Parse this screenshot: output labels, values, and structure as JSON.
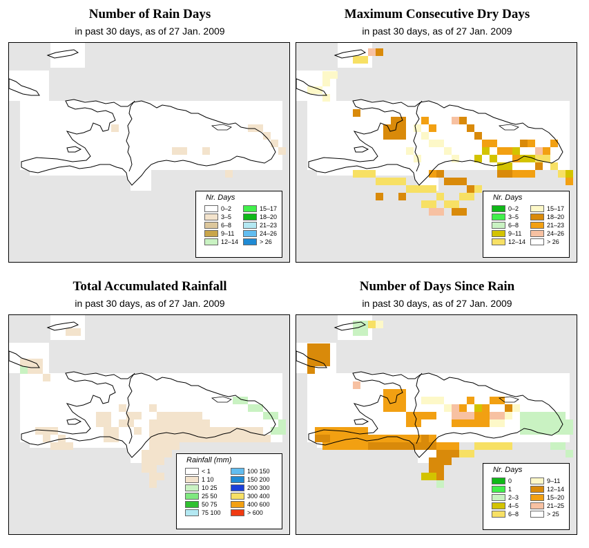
{
  "panels": [
    {
      "id": "rain-days",
      "title": "Number of Rain Days",
      "subtitle": "in past 30 days, as of  27 Jan. 2009",
      "legend": {
        "title": "Nr. Days",
        "items": [
          {
            "label": "0–2",
            "color": "#ffffff"
          },
          {
            "label": "3–5",
            "color": "#f3e3cc"
          },
          {
            "label": "6–8",
            "color": "#dcc79c"
          },
          {
            "label": "9–11",
            "color": "#c9a54a"
          },
          {
            "label": "12–14",
            "color": "#c9f2c2"
          },
          {
            "label": "15–17",
            "color": "#41f04b"
          },
          {
            "label": "18–20",
            "color": "#0fb818"
          },
          {
            "label": "21–23",
            "color": "#b3e8f2"
          },
          {
            "label": "24–26",
            "color": "#62bdf0"
          },
          {
            "label": "> 26",
            "color": "#1f8ad4"
          }
        ]
      }
    },
    {
      "id": "max-dry-days",
      "title": "Maximum Consecutive Dry Days",
      "subtitle": "in past 30 days, as of  27 Jan. 2009",
      "legend": {
        "title": "Nr. Days",
        "items": [
          {
            "label": "0–2",
            "color": "#0fb818"
          },
          {
            "label": "3–5",
            "color": "#41f04b"
          },
          {
            "label": "6–8",
            "color": "#c9f2c2"
          },
          {
            "label": "9–11",
            "color": "#d3c300"
          },
          {
            "label": "12–14",
            "color": "#f7e064"
          },
          {
            "label": "15–17",
            "color": "#fdf8c8"
          },
          {
            "label": "18–20",
            "color": "#d98a0a"
          },
          {
            "label": "21–23",
            "color": "#f2a012"
          },
          {
            "label": "24–26",
            "color": "#f7c1a2"
          },
          {
            "label": "> 26",
            "color": "#ffffff"
          }
        ]
      }
    },
    {
      "id": "total-rainfall",
      "title": "Total Accumulated Rainfall",
      "subtitle": "in past 30 days, as of  27 Jan. 2009",
      "legend": {
        "title": "Rainfall (mm)",
        "items": [
          {
            "label": "< 1",
            "color": "#ffffff"
          },
          {
            "label": "1    10",
            "color": "#f3e3cc"
          },
          {
            "label": "10    25",
            "color": "#c9f2c2"
          },
          {
            "label": "25    50",
            "color": "#7fe87f"
          },
          {
            "label": "50    75",
            "color": "#30c030"
          },
          {
            "label": "75   100",
            "color": "#b3e8f2"
          },
          {
            "label": "100  150",
            "color": "#62bdf0"
          },
          {
            "label": "150  200",
            "color": "#1f8ad4"
          },
          {
            "label": "200  300",
            "color": "#1a3fd9"
          },
          {
            "label": "300  400",
            "color": "#f7e064"
          },
          {
            "label": "400  600",
            "color": "#f2a012"
          },
          {
            "label": "> 600",
            "color": "#f03a12"
          }
        ]
      }
    },
    {
      "id": "days-since-rain",
      "title": "Number of Days Since Rain",
      "subtitle": "in past 30 days, as of  27 Jan. 2009",
      "legend": {
        "title": "Nr. Days",
        "items": [
          {
            "label": "0",
            "color": "#0fb818"
          },
          {
            "label": "1",
            "color": "#41f04b"
          },
          {
            "label": "2–3",
            "color": "#c9f2c2"
          },
          {
            "label": "4–5",
            "color": "#d3c300"
          },
          {
            "label": "6–8",
            "color": "#f7e064"
          },
          {
            "label": "9–11",
            "color": "#fdf8c8"
          },
          {
            "label": "12–14",
            "color": "#d98a0a"
          },
          {
            "label": "15–20",
            "color": "#f2a012"
          },
          {
            "label": "21–25",
            "color": "#f7c1a2"
          },
          {
            "label": "> 25",
            "color": "#ffffff"
          }
        ]
      }
    }
  ]
}
